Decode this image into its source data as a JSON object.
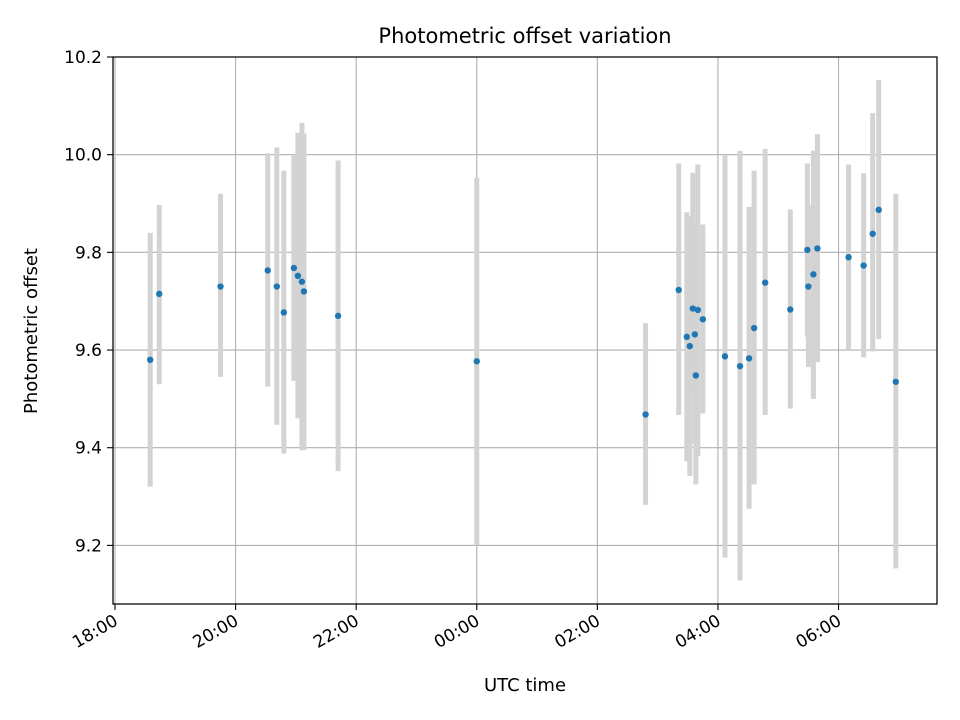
{
  "chart_data": {
    "type": "scatter",
    "title": "Photometric offset variation",
    "xlabel": "UTC time",
    "ylabel": "Photometric offset",
    "x_unit": "UTC date-time",
    "xlim": [
      "2000-01-01T17:58",
      "2000-01-02T07:38"
    ],
    "ylim": [
      9.08,
      10.2
    ],
    "x_ticks": [
      {
        "value": "2000-01-01T18:00",
        "label": "18:00"
      },
      {
        "value": "2000-01-01T20:00",
        "label": "20:00"
      },
      {
        "value": "2000-01-01T22:00",
        "label": "22:00"
      },
      {
        "value": "2000-01-02T00:00",
        "label": "00:00"
      },
      {
        "value": "2000-01-02T02:00",
        "label": "02:00"
      },
      {
        "value": "2000-01-02T04:00",
        "label": "04:00"
      },
      {
        "value": "2000-01-02T06:00",
        "label": "06:00"
      }
    ],
    "y_ticks": [
      {
        "value": 9.2,
        "label": "9.2"
      },
      {
        "value": 9.4,
        "label": "9.4"
      },
      {
        "value": 9.6,
        "label": "9.6"
      },
      {
        "value": 9.8,
        "label": "9.8"
      },
      {
        "value": 10.0,
        "label": "10.0"
      },
      {
        "value": 10.2,
        "label": "10.2"
      }
    ],
    "grid": true,
    "colors": {
      "point": "#1f77b4",
      "errorbar": "#d3d3d3",
      "grid": "#b0b0b0",
      "axes": "#000000"
    },
    "points": [
      {
        "x": "2000-01-01T18:35",
        "y": 9.58,
        "ylow": 9.32,
        "yhigh": 9.84
      },
      {
        "x": "2000-01-01T18:44",
        "y": 9.715,
        "ylow": 9.53,
        "yhigh": 9.897
      },
      {
        "x": "2000-01-01T19:45",
        "y": 9.73,
        "ylow": 9.545,
        "yhigh": 9.92
      },
      {
        "x": "2000-01-01T20:32",
        "y": 9.763,
        "ylow": 9.525,
        "yhigh": 10.003
      },
      {
        "x": "2000-01-01T20:41",
        "y": 9.73,
        "ylow": 9.447,
        "yhigh": 10.015
      },
      {
        "x": "2000-01-01T20:48",
        "y": 9.677,
        "ylow": 9.388,
        "yhigh": 9.967
      },
      {
        "x": "2000-01-01T20:58",
        "y": 9.768,
        "ylow": 9.537,
        "yhigh": 9.998
      },
      {
        "x": "2000-01-01T21:02",
        "y": 9.752,
        "ylow": 9.46,
        "yhigh": 10.045
      },
      {
        "x": "2000-01-01T21:06",
        "y": 9.74,
        "ylow": 9.395,
        "yhigh": 10.065
      },
      {
        "x": "2000-01-01T21:08",
        "y": 9.72,
        "ylow": 9.395,
        "yhigh": 10.043
      },
      {
        "x": "2000-01-01T21:42",
        "y": 9.67,
        "ylow": 9.352,
        "yhigh": 9.988
      },
      {
        "x": "2000-01-02T00:00",
        "y": 9.577,
        "ylow": 9.2,
        "yhigh": 9.953
      },
      {
        "x": "2000-01-02T02:48",
        "y": 9.468,
        "ylow": 9.283,
        "yhigh": 9.655
      },
      {
        "x": "2000-01-02T03:21",
        "y": 9.723,
        "ylow": 9.467,
        "yhigh": 9.982
      },
      {
        "x": "2000-01-02T03:29",
        "y": 9.627,
        "ylow": 9.372,
        "yhigh": 9.882
      },
      {
        "x": "2000-01-02T03:32",
        "y": 9.608,
        "ylow": 9.342,
        "yhigh": 9.875
      },
      {
        "x": "2000-01-02T03:35",
        "y": 9.685,
        "ylow": 9.513,
        "yhigh": 9.963
      },
      {
        "x": "2000-01-02T03:37",
        "y": 9.632,
        "ylow": 9.408,
        "yhigh": 9.858
      },
      {
        "x": "2000-01-02T03:38",
        "y": 9.548,
        "ylow": 9.325,
        "yhigh": 9.772
      },
      {
        "x": "2000-01-02T03:40",
        "y": 9.682,
        "ylow": 9.383,
        "yhigh": 9.98
      },
      {
        "x": "2000-01-02T03:45",
        "y": 9.663,
        "ylow": 9.47,
        "yhigh": 9.857
      },
      {
        "x": "2000-01-02T04:07",
        "y": 9.587,
        "ylow": 9.175,
        "yhigh": 9.998
      },
      {
        "x": "2000-01-02T04:22",
        "y": 9.567,
        "ylow": 9.128,
        "yhigh": 10.008
      },
      {
        "x": "2000-01-02T04:31",
        "y": 9.583,
        "ylow": 9.275,
        "yhigh": 9.893
      },
      {
        "x": "2000-01-02T04:36",
        "y": 9.645,
        "ylow": 9.325,
        "yhigh": 9.967
      },
      {
        "x": "2000-01-02T04:47",
        "y": 9.738,
        "ylow": 9.467,
        "yhigh": 10.012
      },
      {
        "x": "2000-01-02T05:12",
        "y": 9.683,
        "ylow": 9.48,
        "yhigh": 9.888
      },
      {
        "x": "2000-01-02T05:29",
        "y": 9.805,
        "ylow": 9.627,
        "yhigh": 9.982
      },
      {
        "x": "2000-01-02T05:30",
        "y": 9.73,
        "ylow": 9.565,
        "yhigh": 9.897
      },
      {
        "x": "2000-01-02T05:35",
        "y": 9.755,
        "ylow": 9.5,
        "yhigh": 10.008
      },
      {
        "x": "2000-01-02T05:39",
        "y": 9.808,
        "ylow": 9.575,
        "yhigh": 10.042
      },
      {
        "x": "2000-01-02T06:10",
        "y": 9.79,
        "ylow": 9.6,
        "yhigh": 9.98
      },
      {
        "x": "2000-01-02T06:25",
        "y": 9.773,
        "ylow": 9.585,
        "yhigh": 9.962
      },
      {
        "x": "2000-01-02T06:34",
        "y": 9.838,
        "ylow": 9.597,
        "yhigh": 10.085
      },
      {
        "x": "2000-01-02T06:40",
        "y": 9.887,
        "ylow": 9.622,
        "yhigh": 10.153
      },
      {
        "x": "2000-01-02T06:57",
        "y": 9.535,
        "ylow": 9.153,
        "yhigh": 9.92
      }
    ]
  }
}
